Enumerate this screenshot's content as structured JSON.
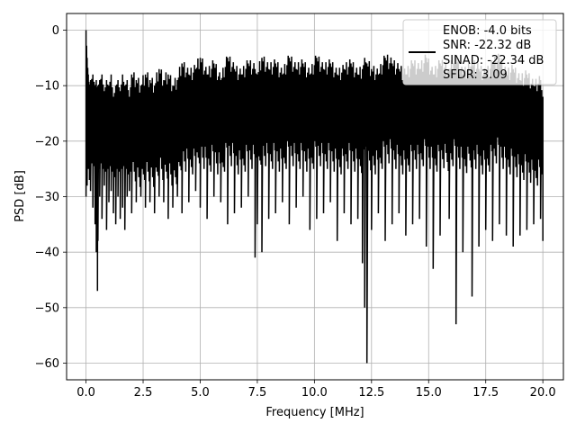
{
  "chart_data": {
    "type": "line",
    "title": "",
    "xlabel": "Frequency [MHz]",
    "ylabel": "PSD [dB]",
    "xlim": [
      -0.85,
      20.9
    ],
    "ylim": [
      -63,
      3
    ],
    "xticks": [
      0.0,
      2.5,
      5.0,
      7.5,
      10.0,
      12.5,
      15.0,
      17.5,
      20.0
    ],
    "xtick_labels": [
      "0.0",
      "2.5",
      "5.0",
      "7.5",
      "10.0",
      "12.5",
      "15.0",
      "17.5",
      "20.0"
    ],
    "yticks": [
      0,
      -10,
      -20,
      -30,
      -40,
      -50,
      -60
    ],
    "ytick_labels": [
      "0",
      "−10",
      "−20",
      "−30",
      "−40",
      "−50",
      "−60"
    ],
    "grid": true,
    "legend_position": "top-right",
    "series": [
      {
        "color": "#000000",
        "legend_lines": [
          "ENOB: -4.0 bits",
          "SNR: -22.32 dB",
          "SINAD: -22.34 dB",
          "SFDR: 3.09"
        ],
        "x": [
          0.0,
          0.05,
          0.1,
          0.15,
          0.2,
          0.3,
          0.4,
          0.45,
          0.5,
          0.52,
          0.6,
          0.7,
          0.8,
          0.9,
          1.0,
          1.1,
          1.2,
          1.3,
          1.4,
          1.5,
          1.6,
          1.7,
          1.8,
          1.9,
          2.0,
          2.2,
          2.4,
          2.6,
          2.8,
          3.0,
          3.2,
          3.4,
          3.6,
          3.8,
          4.0,
          4.2,
          4.5,
          4.8,
          5.0,
          5.3,
          5.6,
          5.9,
          6.2,
          6.5,
          6.8,
          7.1,
          7.4,
          7.5,
          7.7,
          8.0,
          8.3,
          8.6,
          8.9,
          9.2,
          9.5,
          9.8,
          10.1,
          10.4,
          10.7,
          11.0,
          11.3,
          11.6,
          11.9,
          12.1,
          12.2,
          12.3,
          12.5,
          12.8,
          13.1,
          13.4,
          13.7,
          14.0,
          14.3,
          14.6,
          14.9,
          15.2,
          15.5,
          15.9,
          16.2,
          16.5,
          16.9,
          17.2,
          17.5,
          17.8,
          18.1,
          18.4,
          18.7,
          19.0,
          19.3,
          19.6,
          19.9,
          20.0
        ],
        "y_high": [
          0,
          -5,
          -8,
          -10,
          -9,
          -8,
          -10,
          -9,
          -11,
          -10,
          -9,
          -8,
          -11,
          -9,
          -10,
          -8,
          -12,
          -10,
          -9,
          -11,
          -8,
          -10,
          -9,
          -12,
          -8,
          -9,
          -10,
          -8,
          -9,
          -10,
          -7,
          -9,
          -8,
          -10,
          -9,
          -6,
          -8,
          -7,
          -5,
          -8,
          -6,
          -9,
          -5,
          -7,
          -8,
          -6,
          -7,
          -8,
          -5,
          -7,
          -6,
          -8,
          -5,
          -7,
          -6,
          -8,
          -5,
          -7,
          -6,
          -8,
          -7,
          -6,
          -8,
          -7,
          -5,
          -6,
          -7,
          -8,
          -5,
          -6,
          -7,
          -8,
          -6,
          -7,
          -5,
          -8,
          -6,
          -7,
          -5,
          -8,
          -6,
          -7,
          -8,
          -6,
          -5,
          -8,
          -7,
          -9,
          -8,
          -10,
          -9,
          -12
        ],
        "y_low": [
          -30,
          -28,
          -25,
          -27,
          -29,
          -32,
          -35,
          -40,
          -47,
          -38,
          -30,
          -34,
          -28,
          -36,
          -31,
          -29,
          -33,
          -35,
          -30,
          -34,
          -32,
          -36,
          -30,
          -29,
          -33,
          -31,
          -30,
          -32,
          -31,
          -33,
          -30,
          -31,
          -34,
          -32,
          -30,
          -33,
          -31,
          -29,
          -32,
          -34,
          -30,
          -31,
          -35,
          -33,
          -32,
          -30,
          -41,
          -35,
          -40,
          -34,
          -33,
          -31,
          -35,
          -32,
          -30,
          -36,
          -34,
          -33,
          -31,
          -38,
          -33,
          -35,
          -34,
          -42,
          -50,
          -60,
          -36,
          -33,
          -38,
          -35,
          -33,
          -37,
          -35,
          -34,
          -39,
          -43,
          -37,
          -34,
          -53,
          -40,
          -48,
          -39,
          -36,
          -38,
          -35,
          -37,
          -39,
          -37,
          -36,
          -35,
          -34,
          -38
        ]
      }
    ]
  }
}
